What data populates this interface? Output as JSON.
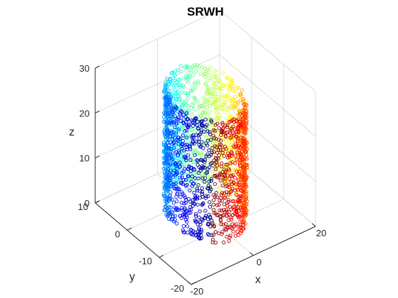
{
  "chart_data": {
    "type": "scatter3d",
    "title": "SRWH",
    "xlabel": "x",
    "ylabel": "y",
    "zlabel": "z",
    "xlim": [
      -20,
      20
    ],
    "ylim": [
      -20,
      10
    ],
    "zlim": [
      0,
      30
    ],
    "xticks": [
      "-20",
      "0",
      "20"
    ],
    "yticks": [
      "-20",
      "-10",
      "0",
      "10"
    ],
    "zticks": [
      "0",
      "10",
      "20",
      "30"
    ],
    "grid": true,
    "colormap": "jet",
    "marker": "open-circle",
    "point_count": 2000,
    "shape": {
      "kind": "cylinder surface (swiss roll with hole)",
      "axis": "z",
      "center_x": 0,
      "center_y": -5,
      "radius": 9,
      "z_range": [
        0,
        27
      ]
    },
    "colors": {
      "axis": "#262626",
      "grid": "#dcdcdc",
      "background": "#ffffff"
    }
  }
}
